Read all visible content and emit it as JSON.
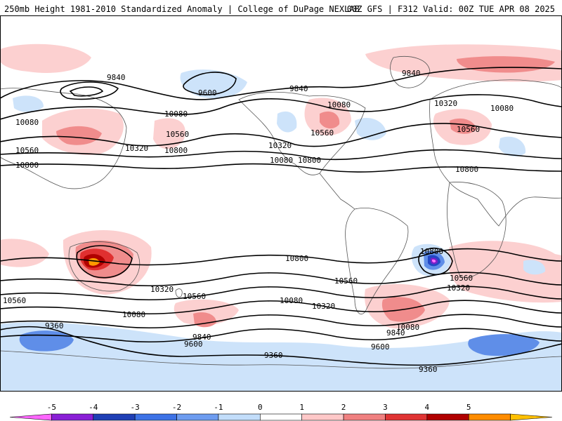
{
  "header": {
    "left": "250mb Height 1981-2010 Standardized Anomaly | College of DuPage NEXLAB",
    "right": "00Z GFS | F312 Valid: 00Z TUE APR 08 2025"
  },
  "contour_labels": [
    "9840",
    "9600",
    "9840",
    "9840",
    "10080",
    "10080",
    "10080",
    "10320",
    "10320",
    "10560",
    "10560",
    "10560",
    "10320",
    "10080",
    "10800",
    "10800",
    "10800",
    "10800",
    "10800",
    "10560",
    "10560",
    "10080",
    "10320",
    "10320",
    "10560",
    "10080",
    "10320",
    "10080",
    "9840",
    "9600",
    "9840",
    "9600",
    "9360",
    "9360",
    "9360",
    "10560",
    "10080",
    "10800",
    "10560"
  ],
  "colorbar": {
    "ticks": [
      "-5",
      "-4",
      "-3",
      "-2",
      "-1",
      "0",
      "1",
      "2",
      "3",
      "4",
      "5"
    ],
    "colors": [
      "#ff66ff",
      "#8a1fd6",
      "#1f3fb5",
      "#3d72e6",
      "#6d9cf0",
      "#c2ddfa",
      "#ffffff",
      "#ffc8c8",
      "#f08080",
      "#e03434",
      "#b00000",
      "#ff8c00",
      "#ffc000"
    ]
  },
  "palette": {
    "neg1": "#cde3fa",
    "neg2": "#5f8ee8",
    "neg3": "#2346c4",
    "neg4": "#7a20c8",
    "neg5": "#ff70ff",
    "pos1": "#fcd0d0",
    "pos2": "#f08c8c",
    "pos3": "#e03030",
    "pos4": "#b00000",
    "pos5": "#ff9a00",
    "land": "#555555",
    "contour": "#000000"
  }
}
